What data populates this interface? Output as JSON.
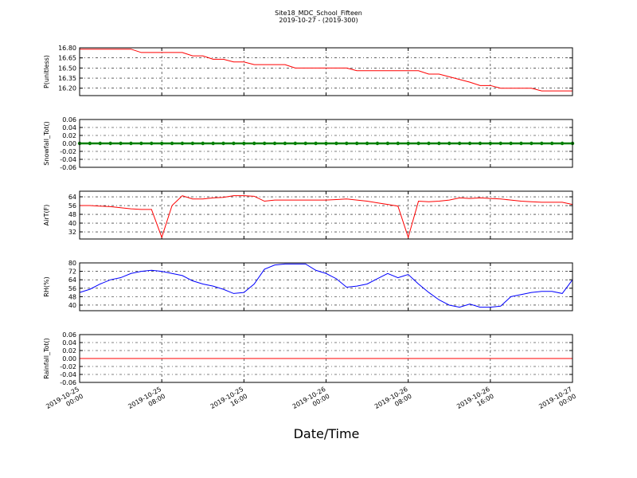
{
  "figure": {
    "title": "Site18_MDC_School_Fifteen",
    "subtitle": "2019-10-27 - (2019-300)",
    "xlabel": "Date/Time",
    "xlim": [
      "2019-10-25 00:00",
      "2019-10-27 00:00"
    ],
    "xticks": [
      {
        "value": "2019-10-25 00:00",
        "label": [
          "2019-10-25",
          "00:00"
        ]
      },
      {
        "value": "2019-10-25 08:00",
        "label": [
          "2019-10-25",
          "08:00"
        ]
      },
      {
        "value": "2019-10-25 16:00",
        "label": [
          "2019-10-25",
          "16:00"
        ]
      },
      {
        "value": "2019-10-26 00:00",
        "label": [
          "2019-10-26",
          "00:00"
        ]
      },
      {
        "value": "2019-10-26 08:00",
        "label": [
          "2019-10-26",
          "08:00"
        ]
      },
      {
        "value": "2019-10-26 16:00",
        "label": [
          "2019-10-26",
          "16:00"
        ]
      },
      {
        "value": "2019-10-27 00:00",
        "label": [
          "2019-10-27",
          "00:00"
        ]
      }
    ],
    "x": [
      "2019-10-25 00:00",
      "2019-10-25 01:00",
      "2019-10-25 02:00",
      "2019-10-25 03:00",
      "2019-10-25 04:00",
      "2019-10-25 05:00",
      "2019-10-25 06:00",
      "2019-10-25 07:00",
      "2019-10-25 08:00",
      "2019-10-25 09:00",
      "2019-10-25 10:00",
      "2019-10-25 11:00",
      "2019-10-25 12:00",
      "2019-10-25 13:00",
      "2019-10-25 14:00",
      "2019-10-25 15:00",
      "2019-10-25 16:00",
      "2019-10-25 17:00",
      "2019-10-25 18:00",
      "2019-10-25 19:00",
      "2019-10-25 20:00",
      "2019-10-25 21:00",
      "2019-10-25 22:00",
      "2019-10-25 23:00",
      "2019-10-26 00:00",
      "2019-10-26 01:00",
      "2019-10-26 02:00",
      "2019-10-26 03:00",
      "2019-10-26 04:00",
      "2019-10-26 05:00",
      "2019-10-26 06:00",
      "2019-10-26 07:00",
      "2019-10-26 08:00",
      "2019-10-26 09:00",
      "2019-10-26 10:00",
      "2019-10-26 11:00",
      "2019-10-26 12:00",
      "2019-10-26 13:00",
      "2019-10-26 14:00",
      "2019-10-26 15:00",
      "2019-10-26 16:00",
      "2019-10-26 17:00",
      "2019-10-26 18:00",
      "2019-10-26 19:00",
      "2019-10-26 20:00",
      "2019-10-26 21:00",
      "2019-10-26 22:00",
      "2019-10-26 23:00",
      "2019-10-27 00:00"
    ]
  },
  "chart_data": [
    {
      "type": "line",
      "ylabel": "P(unitless)",
      "ylim": [
        16.09,
        16.8
      ],
      "grid": true,
      "yticks": [
        {
          "value": 16.8,
          "label": "16.80"
        },
        {
          "value": 16.65,
          "label": "16.65"
        },
        {
          "value": 16.5,
          "label": "16.50"
        },
        {
          "value": 16.35,
          "label": "16.35"
        },
        {
          "value": 16.2,
          "label": "16.20"
        }
      ],
      "series": [
        {
          "color": "#ff0000",
          "values": [
            16.78,
            16.78,
            16.78,
            16.78,
            16.78,
            16.78,
            16.73,
            16.73,
            16.73,
            16.73,
            16.73,
            16.68,
            16.68,
            16.63,
            16.63,
            16.59,
            16.59,
            16.55,
            16.55,
            16.55,
            16.55,
            16.5,
            16.5,
            16.5,
            16.5,
            16.5,
            16.5,
            16.46,
            16.46,
            16.46,
            16.46,
            16.46,
            16.46,
            16.46,
            16.41,
            16.41,
            16.37,
            16.33,
            16.29,
            16.24,
            16.24,
            16.2,
            16.2,
            16.2,
            16.2,
            16.16,
            16.16,
            16.16,
            16.16
          ]
        }
      ]
    },
    {
      "type": "line",
      "ylabel": "Snowfall_Tot()",
      "ylim": [
        -0.06,
        0.06
      ],
      "grid": true,
      "yticks": [
        0.06,
        0.04,
        0.02,
        {
          "value": 0,
          "label": "0.00"
        },
        -0.02,
        -0.04,
        -0.06
      ],
      "series": [
        {
          "color": "#008000",
          "marker": true,
          "values": [
            0,
            0,
            0,
            0,
            0,
            0,
            0,
            0,
            0,
            0,
            0,
            0,
            0,
            0,
            0,
            0,
            0,
            0,
            0,
            0,
            0,
            0,
            0,
            0,
            0,
            0,
            0,
            0,
            0,
            0,
            0,
            0,
            0,
            0,
            0,
            0,
            0,
            0,
            0,
            0,
            0,
            0,
            0,
            0,
            0,
            0,
            0,
            0,
            0
          ]
        }
      ]
    },
    {
      "type": "line",
      "ylabel": "AirT(F)",
      "ylim": [
        25.5,
        69.1
      ],
      "grid": true,
      "yticks": [
        64,
        56,
        48,
        40,
        32
      ],
      "series": [
        {
          "color": "#ff0000",
          "values": [
            56,
            56,
            55.5,
            55,
            54,
            53,
            52.5,
            52.5,
            27,
            56,
            65,
            62,
            62,
            63,
            63.5,
            65,
            65,
            64.5,
            60,
            61,
            61,
            61,
            61,
            61,
            61,
            61.5,
            62,
            61,
            60,
            58.5,
            57,
            55.5,
            27,
            60,
            59.5,
            60,
            61,
            63,
            62.5,
            63,
            62.5,
            62,
            61,
            60,
            59.5,
            59,
            59,
            59,
            57
          ]
        }
      ]
    },
    {
      "type": "line",
      "ylabel": "RH(%)",
      "ylim": [
        34.7,
        80
      ],
      "grid": true,
      "yticks": [
        80,
        72,
        64,
        56,
        48,
        40
      ],
      "series": [
        {
          "color": "#0000ff",
          "values": [
            52,
            55,
            60,
            64,
            66,
            70,
            72,
            73,
            72,
            70,
            68,
            63,
            60,
            58,
            55,
            51,
            52,
            60,
            74,
            78,
            79,
            79,
            79,
            73,
            70,
            65,
            57,
            58,
            60,
            65,
            70,
            66,
            69,
            60,
            52,
            45,
            40,
            38,
            41,
            38,
            38,
            39,
            48,
            50,
            52,
            53,
            53,
            51,
            64
          ]
        }
      ]
    },
    {
      "type": "line",
      "ylabel": "Rainfall_Tot()",
      "ylim": [
        -0.06,
        0.06
      ],
      "grid": true,
      "yticks": [
        0.06,
        0.04,
        0.02,
        {
          "value": 0,
          "label": "0.00"
        },
        -0.02,
        -0.04,
        -0.06
      ],
      "series": [
        {
          "color": "#ff0000",
          "values": [
            0,
            0,
            0,
            0,
            0,
            0,
            0,
            0,
            0,
            0,
            0,
            0,
            0,
            0,
            0,
            0,
            0,
            0,
            0,
            0,
            0,
            0,
            0,
            0,
            0,
            0,
            0,
            0,
            0,
            0,
            0,
            0,
            0,
            0,
            0,
            0,
            0,
            0,
            0,
            0,
            0,
            0,
            0,
            0,
            0,
            0,
            0,
            0,
            0
          ]
        }
      ]
    }
  ]
}
